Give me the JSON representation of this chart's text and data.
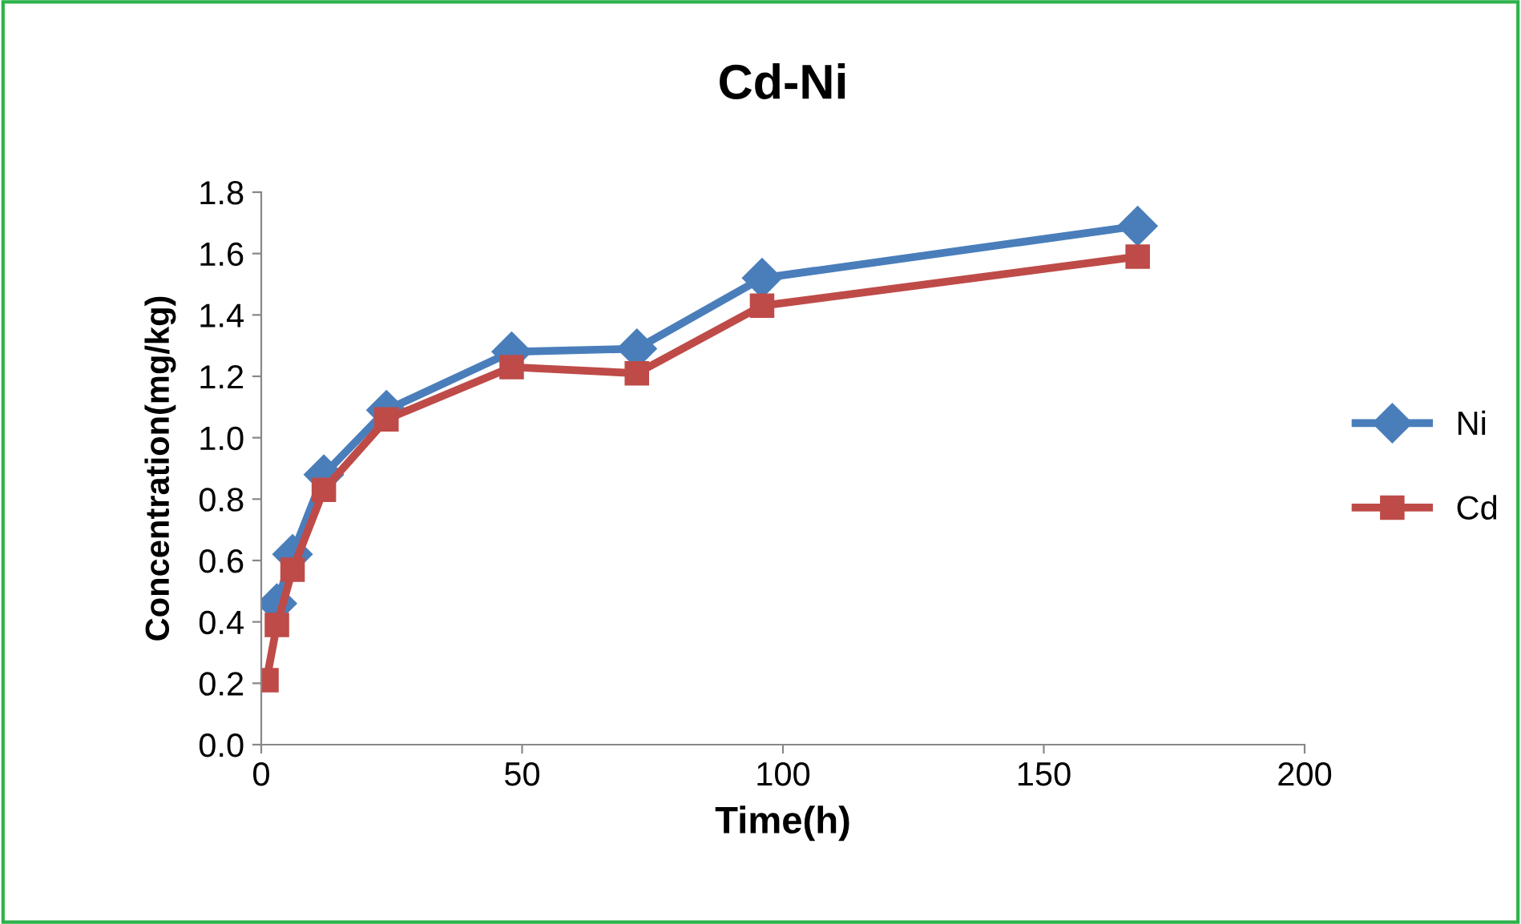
{
  "chart_data": {
    "type": "line",
    "title": "Cd-Ni",
    "xlabel": "Time(h)",
    "ylabel": "Concentration(mg/kg)",
    "x": [
      1,
      3,
      6,
      12,
      24,
      48,
      72,
      96,
      168
    ],
    "series": [
      {
        "name": "Ni",
        "color": "#4a7ebb",
        "marker": "diamond",
        "values": [
          null,
          0.46,
          0.62,
          0.88,
          1.09,
          1.28,
          1.29,
          1.52,
          1.69
        ]
      },
      {
        "name": "Cd",
        "color": "#be4b48",
        "marker": "square",
        "values": [
          0.21,
          0.39,
          0.57,
          0.83,
          1.06,
          1.23,
          1.21,
          1.43,
          1.59
        ]
      }
    ],
    "xlim": [
      0,
      200
    ],
    "xticks": [
      0,
      50,
      100,
      150,
      200
    ],
    "ylim": [
      0,
      1.8
    ],
    "yticks": [
      {
        "value": 0,
        "label": "0.0"
      },
      {
        "value": 0.2,
        "label": "0.2"
      },
      {
        "value": 0.4,
        "label": "0.4"
      },
      {
        "value": 0.6,
        "label": "0.6"
      },
      {
        "value": 0.8,
        "label": "0.8"
      },
      {
        "value": 1.0,
        "label": "1.0"
      },
      {
        "value": 1.2,
        "label": "1.2"
      },
      {
        "value": 1.4,
        "label": "1.4"
      },
      {
        "value": 1.6,
        "label": "1.6"
      },
      {
        "value": 1.8,
        "label": "1.8"
      }
    ],
    "grid": false,
    "legend": "right",
    "line_style": "solid"
  }
}
